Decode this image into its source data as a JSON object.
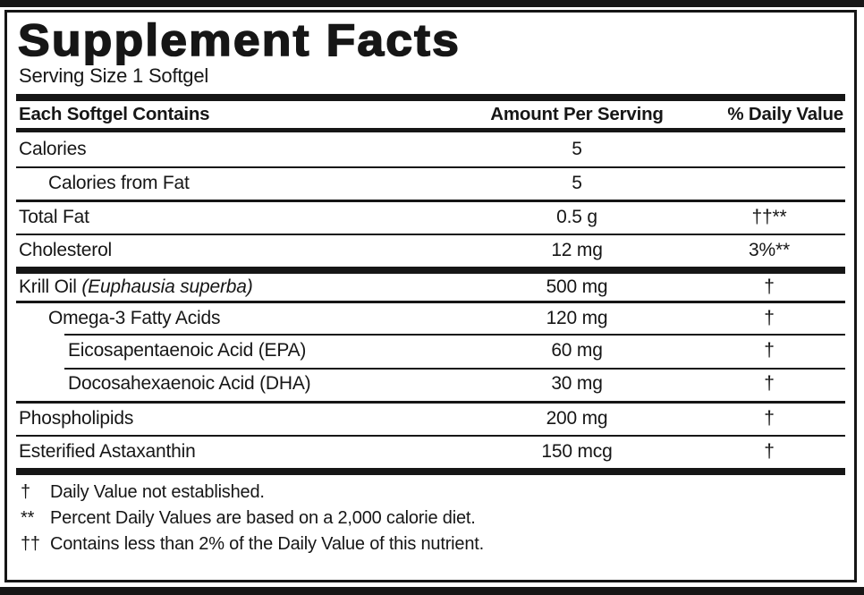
{
  "title": "Supplement Facts",
  "serving_size": "Serving Size 1 Softgel",
  "table": {
    "headers": {
      "contains": "Each Softgel Contains",
      "amount": "Amount Per Serving",
      "daily_value": "% Daily Value"
    },
    "rows": [
      {
        "name": "Calories",
        "amount": "5",
        "dv": "",
        "indent": 0,
        "rule": "none"
      },
      {
        "name": "Calories from Fat",
        "amount": "5",
        "dv": "",
        "indent": 1,
        "rule": "thin"
      },
      {
        "name": "Total Fat",
        "amount": "0.5 g",
        "dv": "††**",
        "indent": 0,
        "rule": "medium"
      },
      {
        "name": "Cholesterol",
        "amount": "12 mg",
        "dv": "3%**",
        "indent": 0,
        "rule": "thin"
      },
      {
        "name": "Krill Oil ",
        "name_italic": "(Euphausia superba)",
        "amount": "500 mg",
        "dv": "†",
        "indent": 0,
        "rule": "thick"
      },
      {
        "name": "Omega-3 Fatty Acids",
        "amount": "120 mg",
        "dv": "†",
        "indent": 1,
        "rule": "medium"
      },
      {
        "name": "Eicosapentaenoic Acid (EPA)",
        "amount": "60 mg",
        "dv": "†",
        "indent": 2,
        "rule": "thin-indent"
      },
      {
        "name": "Docosahexaenoic Acid (DHA)",
        "amount": "30 mg",
        "dv": "†",
        "indent": 2,
        "rule": "thin-indent"
      },
      {
        "name": "Phospholipids",
        "amount": "200 mg",
        "dv": "†",
        "indent": 0,
        "rule": "medium"
      },
      {
        "name": "Esterified Astaxanthin",
        "amount": "150 mcg",
        "dv": "†",
        "indent": 0,
        "rule": "thin"
      }
    ]
  },
  "footnotes": [
    {
      "symbol": "†",
      "text": "Daily Value not established."
    },
    {
      "symbol": "**",
      "text": "Percent Daily Values are based on a 2,000 calorie diet."
    },
    {
      "symbol": "††",
      "text": "Contains less than 2% of the Daily Value of this nutrient."
    }
  ],
  "colors": {
    "ink": "#161616",
    "paper": "#ffffff"
  }
}
